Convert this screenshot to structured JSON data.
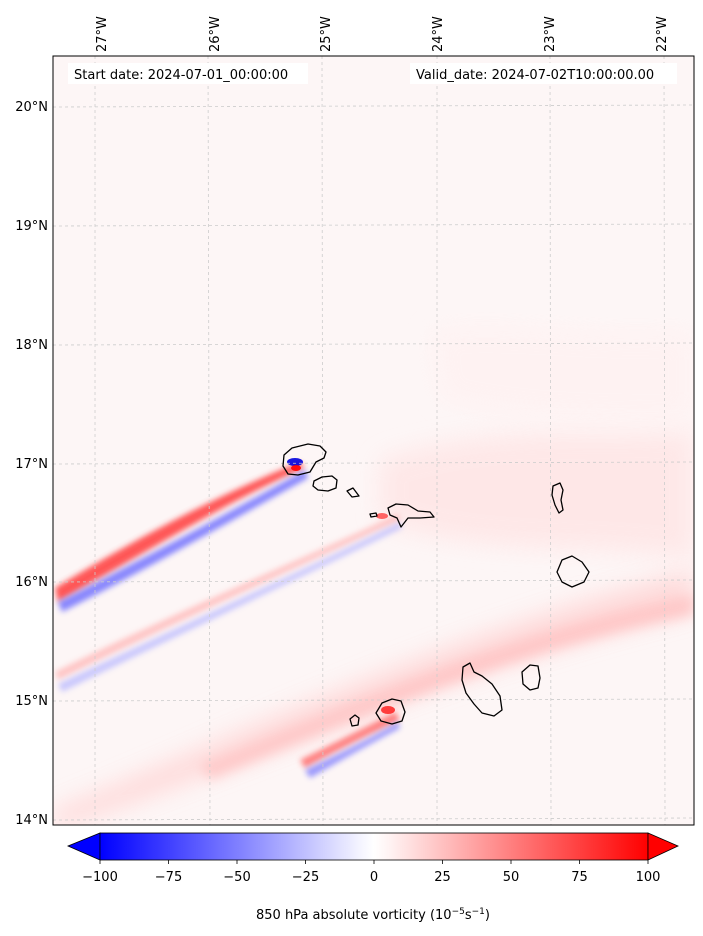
{
  "header": {
    "start_date": "Start date: 2024-07-01_00:00:00",
    "valid_date": "Valid_date: 2024-07-02T10:00:00.00"
  },
  "lon_ticks": [
    "27°W",
    "26°W",
    "25°W",
    "24°W",
    "23°W",
    "22°W"
  ],
  "lat_ticks": [
    "20°N",
    "19°N",
    "18°N",
    "17°N",
    "16°N",
    "15°N",
    "14°N"
  ],
  "colorbar": {
    "ticks": [
      "−100",
      "−75",
      "−50",
      "−25",
      "0",
      "25",
      "50",
      "75",
      "100"
    ],
    "label_prefix": "850 hPa absolute vorticity (10",
    "label_exp1": "−5",
    "label_mid": "s",
    "label_exp2": "−1",
    "label_suffix": ")",
    "range": [
      -100,
      100
    ],
    "colormap": "bwr"
  },
  "colors": {
    "negative": "#0000ff",
    "positive": "#ff0000",
    "zero": "#ffffff",
    "coastline": "#000000"
  }
}
